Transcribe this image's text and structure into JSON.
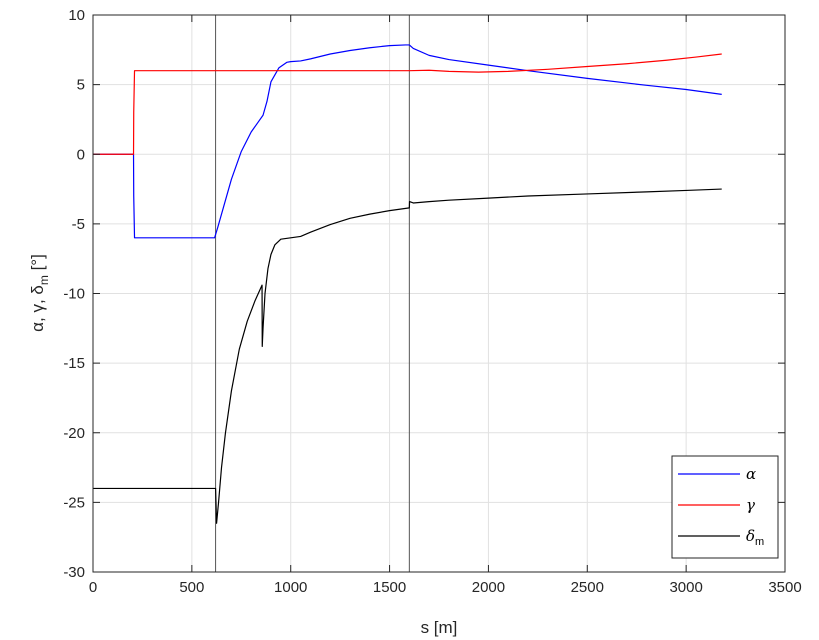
{
  "chart_data": {
    "type": "line",
    "xlabel": "s [m]",
    "ylabel_parts": [
      "α, γ, δ",
      "m",
      " [°]"
    ],
    "xlim": [
      0,
      3500
    ],
    "ylim": [
      -30,
      10
    ],
    "xticks": [
      0,
      500,
      1000,
      1500,
      2000,
      2500,
      3000,
      3500
    ],
    "yticks": [
      -30,
      -25,
      -20,
      -15,
      -10,
      -5,
      0,
      5,
      10
    ],
    "grid": true,
    "legend_position": "bottom-right",
    "vertical_lines": [
      620,
      1600
    ],
    "series": [
      {
        "name": "α",
        "color": "#0000ff",
        "x": [
          0,
          205,
          206,
          210,
          580,
          600,
          615,
          630,
          660,
          700,
          750,
          800,
          840,
          860,
          880,
          900,
          940,
          980,
          1000,
          1050,
          1100,
          1200,
          1300,
          1400,
          1500,
          1580,
          1600,
          1620,
          1700,
          1800,
          2000,
          2200,
          2500,
          2800,
          3000,
          3180
        ],
        "y": [
          0,
          0,
          -3,
          -6,
          -6,
          -6,
          -6,
          -5.3,
          -3.8,
          -1.8,
          0.2,
          1.6,
          2.4,
          2.8,
          3.8,
          5.2,
          6.2,
          6.6,
          6.65,
          6.7,
          6.85,
          7.2,
          7.45,
          7.65,
          7.8,
          7.85,
          7.85,
          7.6,
          7.1,
          6.8,
          6.4,
          6.0,
          5.45,
          4.95,
          4.65,
          4.3
        ]
      },
      {
        "name": "γ",
        "color": "#ff0000",
        "x": [
          0,
          205,
          206,
          210,
          800,
          1200,
          1600,
          1700,
          1800,
          1950,
          2100,
          2300,
          2500,
          2700,
          2900,
          3050,
          3180
        ],
        "y": [
          0,
          0,
          3,
          6,
          6,
          6,
          6,
          6.03,
          5.95,
          5.9,
          5.95,
          6.1,
          6.3,
          6.5,
          6.75,
          6.98,
          7.2
        ]
      },
      {
        "name": "δ",
        "name_sub": "m",
        "color": "#000000",
        "x": [
          0,
          620,
          625,
          635,
          650,
          670,
          700,
          740,
          780,
          820,
          855,
          856,
          860,
          870,
          885,
          900,
          920,
          950,
          1000,
          1050,
          1100,
          1200,
          1300,
          1400,
          1500,
          1600,
          1601,
          1620,
          1700,
          1800,
          2000,
          2200,
          2500,
          2800,
          3000,
          3180
        ],
        "y": [
          -24,
          -24,
          -26.5,
          -25,
          -22.5,
          -20,
          -17,
          -14,
          -12,
          -10.5,
          -9.4,
          -13.8,
          -12.5,
          -10,
          -8.2,
          -7.2,
          -6.5,
          -6.1,
          -6.0,
          -5.9,
          -5.6,
          -5.05,
          -4.6,
          -4.3,
          -4.05,
          -3.85,
          -3.4,
          -3.5,
          -3.4,
          -3.3,
          -3.15,
          -3.0,
          -2.85,
          -2.7,
          -2.6,
          -2.5
        ]
      }
    ]
  }
}
